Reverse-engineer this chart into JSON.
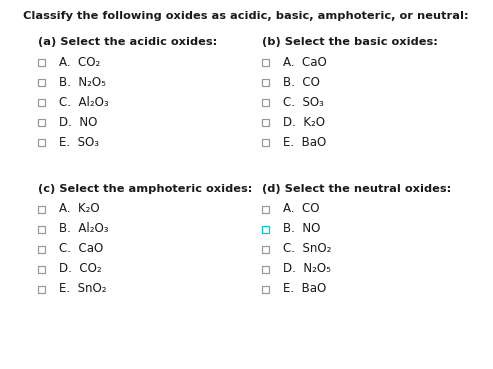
{
  "title": "Classify the following oxides as acidic, basic, amphoteric, or neutral:",
  "background_color": "#ffffff",
  "text_color": "#1a1a1a",
  "section_headers": [
    "(a) Select the acidic oxides:",
    "(b) Select the basic oxides:",
    "(c) Select the amphoteric oxides:",
    "(d) Select the neutral oxides:"
  ],
  "col_a_texts": [
    "A.  CO₂",
    "B.  N₂O₅",
    "C.  Al₂O₃",
    "D.  NO",
    "E.  SO₃"
  ],
  "col_b_texts": [
    "A.  CaO",
    "B.  CO",
    "C.  SO₃",
    "D.  K₂O",
    "E.  BaO"
  ],
  "col_c_texts": [
    "A.  K₂O",
    "B.  Al₂O₃",
    "C.  CaO",
    "D.  CO₂",
    "E.  SnO₂"
  ],
  "col_d_texts": [
    "A.  CO",
    "B.  NO",
    "C.  SnO₂",
    "D.  N₂O₅",
    "E.  BaO"
  ],
  "checkbox_color_normal": "#999999",
  "checkbox_color_cyan": "#00c8d4",
  "cyan_item_index": 1,
  "cyan_col": "d",
  "title_fontsize": 8.2,
  "header_fontsize": 8.2,
  "item_fontsize": 8.5
}
